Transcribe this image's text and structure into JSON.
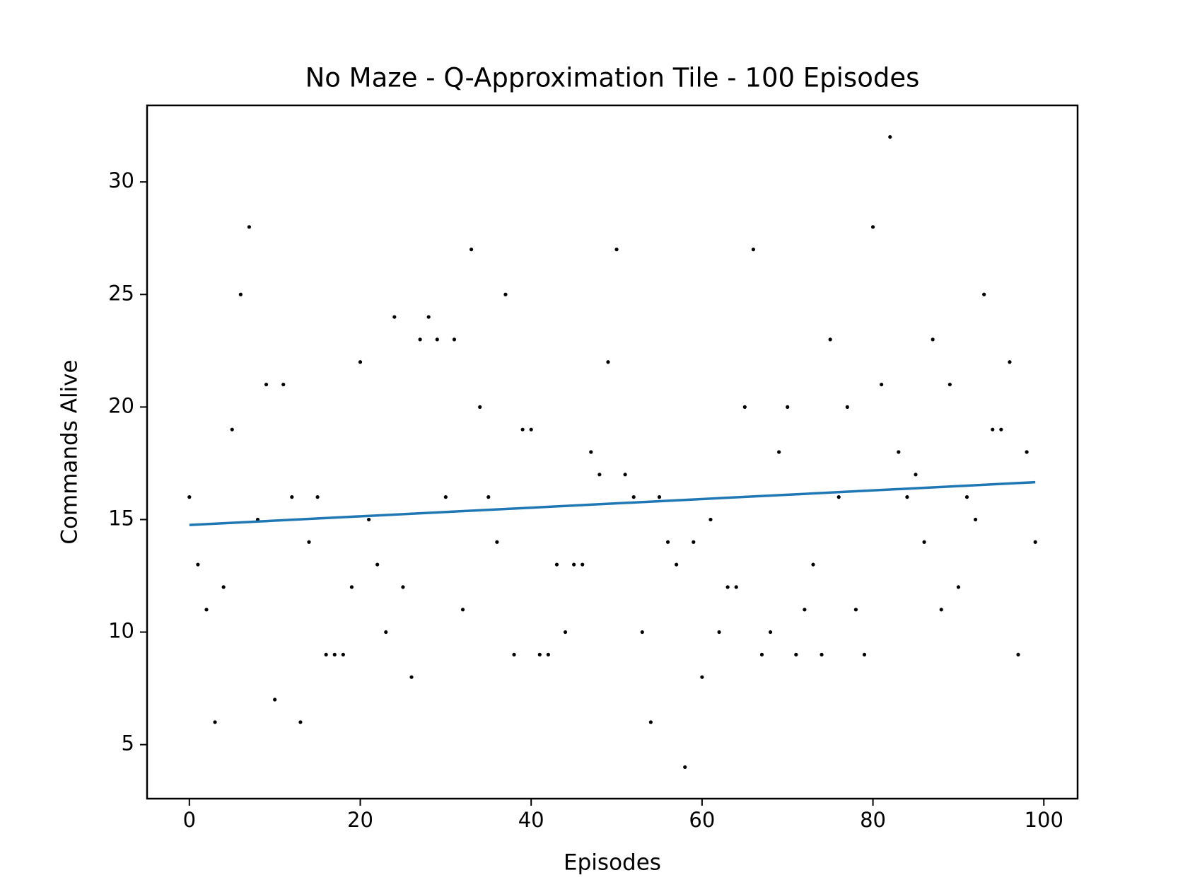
{
  "chart_data": {
    "type": "scatter",
    "title": "No Maze - Q-Approximation Tile - 100 Episodes",
    "x_label": "Episodes",
    "y_label": "Commands Alive",
    "xlim": [
      -4.95,
      103.95
    ],
    "ylim": [
      2.6,
      33.4
    ],
    "xticks": [
      0,
      20,
      40,
      60,
      80,
      100
    ],
    "yticks": [
      5,
      10,
      15,
      20,
      25,
      30
    ],
    "series": [
      {
        "type": "scatter",
        "color": "#000000",
        "x": [
          0,
          1,
          2,
          3,
          4,
          5,
          6,
          7,
          8,
          9,
          10,
          11,
          12,
          13,
          14,
          15,
          16,
          17,
          18,
          19,
          20,
          21,
          22,
          23,
          24,
          25,
          26,
          27,
          28,
          29,
          30,
          31,
          32,
          33,
          34,
          35,
          36,
          37,
          38,
          39,
          40,
          41,
          42,
          43,
          44,
          45,
          46,
          47,
          48,
          49,
          50,
          51,
          52,
          53,
          54,
          55,
          56,
          57,
          58,
          59,
          60,
          61,
          62,
          63,
          64,
          65,
          66,
          67,
          68,
          69,
          70,
          71,
          72,
          73,
          74,
          75,
          76,
          77,
          78,
          79,
          80,
          81,
          82,
          83,
          84,
          85,
          86,
          87,
          88,
          89,
          90,
          91,
          92,
          93,
          94,
          95,
          96,
          97,
          98,
          99
        ],
        "values": [
          16,
          13,
          11,
          6,
          12,
          19,
          25,
          28,
          15,
          21,
          7,
          21,
          16,
          6,
          14,
          16,
          9,
          9,
          9,
          12,
          22,
          15,
          13,
          10,
          24,
          12,
          8,
          23,
          24,
          23,
          16,
          23,
          11,
          27,
          20,
          16,
          14,
          25,
          9,
          19,
          19,
          9,
          9,
          13,
          10,
          13,
          13,
          18,
          17,
          22,
          27,
          17,
          16,
          10,
          6,
          16,
          14,
          13,
          4,
          14,
          8,
          15,
          10,
          12,
          12,
          20,
          27,
          9,
          10,
          18,
          20,
          9,
          11,
          13,
          9,
          23,
          16,
          20,
          11,
          9,
          28,
          21,
          32,
          18,
          16,
          17,
          14,
          23,
          11,
          21,
          12,
          16,
          15,
          25,
          19,
          19,
          22,
          9,
          18,
          14
        ]
      },
      {
        "type": "line",
        "color": "#1f77b4",
        "x": [
          0,
          99
        ],
        "values": [
          14.76,
          16.66
        ]
      }
    ]
  }
}
